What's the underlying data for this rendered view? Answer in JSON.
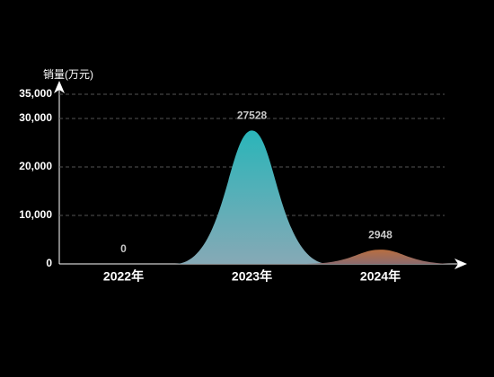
{
  "chart_data": {
    "type": "peak",
    "y_axis_label": "销量(万元)",
    "categories": [
      "2022年",
      "2023年",
      "2024年"
    ],
    "values": [
      0,
      27528,
      2948
    ],
    "gradients": [
      [
        "#2ab5b9",
        "#86a9b6"
      ],
      [
        "#2ab5b9",
        "#86a9b6"
      ],
      [
        "#b86e40",
        "#8c6b6e"
      ]
    ],
    "ylim": [
      0,
      35000
    ],
    "yticks": [
      0,
      {
        "value": 10000,
        "label": "10,000"
      },
      {
        "value": 20000,
        "label": "20,000"
      },
      {
        "value": 30000,
        "label": "30,000"
      },
      {
        "value": 35000,
        "label": "35,000"
      }
    ],
    "grid": true
  }
}
